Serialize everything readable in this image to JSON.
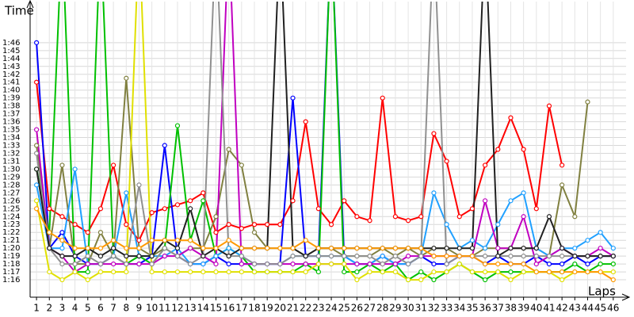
{
  "chart_data": {
    "type": "line",
    "y_label": "Time",
    "x_label": "Laps",
    "x": [
      1,
      2,
      3,
      4,
      5,
      6,
      7,
      8,
      9,
      10,
      11,
      12,
      13,
      14,
      15,
      16,
      17,
      18,
      19,
      20,
      21,
      22,
      23,
      24,
      25,
      26,
      27,
      28,
      29,
      30,
      31,
      32,
      33,
      34,
      35,
      36,
      37,
      38,
      39,
      40,
      41,
      42,
      43,
      44,
      45,
      46
    ],
    "xlim": [
      0.5,
      47
    ],
    "xticks": [
      1,
      2,
      3,
      4,
      5,
      6,
      7,
      8,
      9,
      10,
      11,
      12,
      13,
      14,
      15,
      16,
      17,
      18,
      19,
      20,
      21,
      22,
      23,
      24,
      25,
      26,
      27,
      28,
      29,
      30,
      31,
      32,
      33,
      34,
      35,
      36,
      37,
      38,
      39,
      40,
      41,
      42,
      43,
      44,
      45,
      46
    ],
    "ylim": [
      73.8,
      111.2
    ],
    "yticks": [
      {
        "value": 76,
        "label": "1:16"
      },
      {
        "value": 77,
        "label": "1:17"
      },
      {
        "value": 78,
        "label": "1:18"
      },
      {
        "value": 79,
        "label": "1:19"
      },
      {
        "value": 80,
        "label": "1:20"
      },
      {
        "value": 81,
        "label": "1:21"
      },
      {
        "value": 82,
        "label": "1:22"
      },
      {
        "value": 83,
        "label": "1:23"
      },
      {
        "value": 84,
        "label": "1:24"
      },
      {
        "value": 85,
        "label": "1:25"
      },
      {
        "value": 86,
        "label": "1:26"
      },
      {
        "value": 87,
        "label": "1:27"
      },
      {
        "value": 88,
        "label": "1:28"
      },
      {
        "value": 89,
        "label": "1:29"
      },
      {
        "value": 90,
        "label": "1:30"
      },
      {
        "value": 91,
        "label": "1:31"
      },
      {
        "value": 92,
        "label": "1:32"
      },
      {
        "value": 93,
        "label": "1:33"
      },
      {
        "value": 94,
        "label": "1:34"
      },
      {
        "value": 95,
        "label": "1:35"
      },
      {
        "value": 96,
        "label": "1:36"
      },
      {
        "value": 97,
        "label": "1:37"
      },
      {
        "value": 98,
        "label": "1:38"
      },
      {
        "value": 99,
        "label": "1:39"
      },
      {
        "value": 100,
        "label": "1:40"
      },
      {
        "value": 101,
        "label": "1:41"
      },
      {
        "value": 102,
        "label": "1:42"
      },
      {
        "value": 103,
        "label": "1:43"
      },
      {
        "value": 104,
        "label": "1:44"
      },
      {
        "value": 105,
        "label": "1:45"
      },
      {
        "value": 106,
        "label": "1:46"
      }
    ],
    "grid": true,
    "series": [
      {
        "color": "#ff0000",
        "values": [
          101,
          85,
          84,
          83,
          82,
          85,
          90.5,
          83,
          81,
          84.5,
          85,
          85.5,
          86,
          87,
          82,
          83,
          82.5,
          83,
          83,
          83,
          86,
          96,
          85,
          83,
          86,
          84,
          83.5,
          99,
          84,
          83.5,
          84,
          94.5,
          91,
          84,
          85,
          90.5,
          92.5,
          96.5,
          92.5,
          85,
          98,
          90.5,
          null,
          null,
          null,
          null
        ]
      },
      {
        "color": "#0000ff",
        "values": [
          106,
          80,
          82,
          79,
          78,
          78,
          79,
          78,
          78,
          79,
          93,
          79,
          78,
          78,
          79,
          78,
          78,
          78,
          78,
          78,
          99,
          79,
          79,
          120,
          79,
          78,
          78,
          79,
          78,
          78,
          79,
          78,
          78,
          79,
          79,
          78,
          79,
          78,
          78,
          79,
          78,
          78,
          79,
          78,
          79,
          79
        ]
      },
      {
        "color": "#808040",
        "values": [
          93,
          80,
          90.5,
          78,
          78,
          82,
          79,
          101.5,
          80,
          79,
          80,
          79,
          80,
          80,
          84,
          92.5,
          90.5,
          82,
          80,
          80,
          80,
          79,
          80,
          80,
          79,
          79,
          79,
          80,
          79,
          80,
          79,
          80,
          80,
          79,
          79,
          80,
          80,
          80,
          80,
          80,
          79,
          88,
          84,
          98.5,
          null,
          null
        ]
      },
      {
        "color": "#00c000",
        "values": [
          90,
          82,
          120,
          77,
          77,
          120,
          79,
          78,
          79,
          78,
          80,
          95.5,
          81,
          86,
          79,
          80,
          79,
          77,
          77,
          77,
          77,
          78,
          77,
          120,
          77,
          77,
          78,
          77,
          78,
          76,
          77,
          76,
          77,
          78,
          77,
          76,
          77,
          77,
          77,
          77,
          77,
          77,
          78,
          77,
          78,
          78
        ]
      },
      {
        "color": "#20a0ff",
        "values": [
          88,
          80,
          80,
          90,
          78,
          78,
          79,
          87,
          79,
          79,
          79,
          80,
          78,
          78,
          79,
          80,
          79,
          78,
          78,
          78,
          79,
          79,
          79,
          79,
          79,
          78,
          78,
          79,
          78,
          78,
          79,
          87,
          83,
          80,
          81,
          80,
          83,
          86,
          87,
          80,
          79,
          80,
          80,
          81,
          82,
          80
        ]
      },
      {
        "color": "#c000c0",
        "values": [
          95,
          80,
          79,
          77,
          78,
          78,
          78,
          78,
          78,
          78,
          79,
          79,
          80,
          79,
          78,
          120,
          78,
          78,
          78,
          78,
          78,
          78,
          78,
          78,
          78,
          78,
          78,
          78,
          78,
          79,
          79,
          79,
          79,
          79,
          79,
          86,
          80,
          80,
          84,
          78,
          79,
          80,
          79,
          79,
          80,
          79
        ]
      },
      {
        "color": "#909090",
        "values": [
          92,
          80,
          78,
          78,
          79,
          78,
          79,
          78,
          88,
          78,
          80,
          79,
          78,
          79,
          120,
          79,
          79,
          78,
          78,
          78,
          79,
          79,
          79,
          79,
          79,
          79,
          79,
          78,
          79,
          78,
          79,
          120,
          78,
          79,
          79,
          79,
          79,
          79,
          79,
          79,
          79,
          79,
          79,
          79,
          79,
          79
        ]
      },
      {
        "color": "#e0e000",
        "values": [
          86,
          77,
          76,
          77,
          76,
          77,
          77,
          77,
          120,
          77,
          77,
          77,
          77,
          77,
          77,
          77,
          77,
          77,
          77,
          77,
          77,
          77,
          78,
          78,
          78,
          76,
          77,
          77,
          77,
          76,
          76,
          77,
          77,
          78,
          77,
          77,
          77,
          76,
          77,
          77,
          77,
          76,
          77,
          77,
          77,
          77
        ]
      },
      {
        "color": "#202020",
        "values": [
          90,
          80,
          79,
          79,
          80,
          79,
          80,
          79,
          79,
          79,
          81,
          80,
          85,
          79,
          80,
          79,
          80,
          80,
          80,
          120,
          80,
          79,
          80,
          80,
          80,
          80,
          80,
          80,
          80,
          80,
          80,
          80,
          80,
          80,
          80,
          120,
          79,
          80,
          80,
          80,
          84,
          80,
          79,
          79,
          79,
          79
        ]
      },
      {
        "color": "#ff9900",
        "values": [
          85,
          82,
          81,
          80,
          80,
          80,
          81,
          80,
          80,
          81,
          81,
          81,
          81,
          80,
          80,
          81,
          80,
          80,
          80,
          80,
          80,
          81,
          80,
          80,
          80,
          80,
          80,
          80,
          80,
          80,
          80,
          79,
          79,
          79,
          79,
          78,
          78,
          78,
          78,
          77,
          77,
          77,
          77,
          77,
          77,
          76
        ]
      }
    ]
  }
}
